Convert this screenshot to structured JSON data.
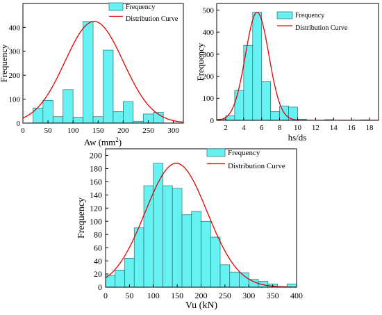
{
  "chart_data": [
    {
      "type": "bar",
      "xlabel": "Aw (mm",
      "xlabel_sup": "2",
      "xlabel_close": ")",
      "ylabel": "Frequency",
      "xlim": [
        0,
        320
      ],
      "ylim": [
        0,
        500
      ],
      "xticks": [
        0,
        50,
        100,
        150,
        200,
        250,
        300
      ],
      "yticks": [
        0,
        100,
        200,
        300,
        400
      ],
      "bins": [
        {
          "x0": 20,
          "x1": 40,
          "value": 63
        },
        {
          "x0": 40,
          "x1": 60,
          "value": 95
        },
        {
          "x0": 60,
          "x1": 80,
          "value": 27
        },
        {
          "x0": 80,
          "x1": 100,
          "value": 140
        },
        {
          "x0": 100,
          "x1": 120,
          "value": 25
        },
        {
          "x0": 120,
          "x1": 140,
          "value": 425
        },
        {
          "x0": 140,
          "x1": 160,
          "value": 27
        },
        {
          "x0": 160,
          "x1": 180,
          "value": 305
        },
        {
          "x0": 180,
          "x1": 200,
          "value": 48
        },
        {
          "x0": 200,
          "x1": 220,
          "value": 90
        },
        {
          "x0": 220,
          "x1": 240,
          "value": 8
        },
        {
          "x0": 240,
          "x1": 260,
          "value": 38
        },
        {
          "x0": 260,
          "x1": 280,
          "value": 45
        }
      ],
      "curve": {
        "mean": 142,
        "sd": 58,
        "peak": 425
      },
      "legend": {
        "bars": "Frequency",
        "curve": "Distribution Curve"
      }
    },
    {
      "type": "bar",
      "xlabel": "hs/ds",
      "ylabel": "Frequency",
      "xlim": [
        1,
        19
      ],
      "ylim": [
        0,
        530
      ],
      "xticks": [
        2,
        4,
        6,
        8,
        10,
        12,
        14,
        16,
        18
      ],
      "yticks": [
        0,
        100,
        200,
        300,
        400,
        500
      ],
      "bins": [
        {
          "x0": 1,
          "x1": 2,
          "value": 5
        },
        {
          "x0": 2,
          "x1": 3,
          "value": 20
        },
        {
          "x0": 3,
          "x1": 4,
          "value": 135
        },
        {
          "x0": 4,
          "x1": 5,
          "value": 340
        },
        {
          "x0": 5,
          "x1": 6,
          "value": 490
        },
        {
          "x0": 6,
          "x1": 7,
          "value": 175
        },
        {
          "x0": 7,
          "x1": 8,
          "value": 40
        },
        {
          "x0": 8,
          "x1": 9,
          "value": 65
        },
        {
          "x0": 9,
          "x1": 10,
          "value": 60
        },
        {
          "x0": 10,
          "x1": 11,
          "value": 5
        },
        {
          "x0": 13,
          "x1": 14,
          "value": 3
        },
        {
          "x0": 17,
          "x1": 18,
          "value": 2
        }
      ],
      "curve": {
        "mean": 5.5,
        "sd": 1.3,
        "peak": 490
      },
      "legend": {
        "bars": "Frequency",
        "curve": "Distribution Curve"
      }
    },
    {
      "type": "bar",
      "xlabel": "Vu (kN)",
      "ylabel": "Frequency",
      "xlim": [
        0,
        400
      ],
      "ylim": [
        0,
        210
      ],
      "xticks": [
        0,
        50,
        100,
        150,
        200,
        250,
        300,
        350,
        400
      ],
      "yticks": [
        0,
        20,
        40,
        60,
        80,
        100,
        120,
        140,
        160,
        180,
        200
      ],
      "bins": [
        {
          "x0": 0,
          "x1": 20,
          "value": 18
        },
        {
          "x0": 20,
          "x1": 40,
          "value": 26
        },
        {
          "x0": 40,
          "x1": 60,
          "value": 44
        },
        {
          "x0": 60,
          "x1": 80,
          "value": 90
        },
        {
          "x0": 80,
          "x1": 100,
          "value": 154
        },
        {
          "x0": 100,
          "x1": 120,
          "value": 188
        },
        {
          "x0": 120,
          "x1": 140,
          "value": 154
        },
        {
          "x0": 140,
          "x1": 160,
          "value": 150
        },
        {
          "x0": 160,
          "x1": 180,
          "value": 110
        },
        {
          "x0": 180,
          "x1": 200,
          "value": 115
        },
        {
          "x0": 200,
          "x1": 220,
          "value": 100
        },
        {
          "x0": 220,
          "x1": 240,
          "value": 76
        },
        {
          "x0": 240,
          "x1": 260,
          "value": 34
        },
        {
          "x0": 260,
          "x1": 280,
          "value": 23
        },
        {
          "x0": 280,
          "x1": 300,
          "value": 22
        },
        {
          "x0": 300,
          "x1": 320,
          "value": 12
        },
        {
          "x0": 320,
          "x1": 340,
          "value": 9
        },
        {
          "x0": 340,
          "x1": 360,
          "value": 5
        },
        {
          "x0": 360,
          "x1": 380,
          "value": 1
        },
        {
          "x0": 380,
          "x1": 400,
          "value": 5
        }
      ],
      "curve": {
        "mean": 148,
        "sd": 65,
        "peak": 188
      },
      "legend": {
        "bars": "Frequency",
        "curve": "Distribution Curve"
      }
    }
  ],
  "colors": {
    "bar_fill": "#66f2f2",
    "bar_stroke": "#2a6e6e",
    "curve": "#e00000",
    "axis": "#000000"
  }
}
